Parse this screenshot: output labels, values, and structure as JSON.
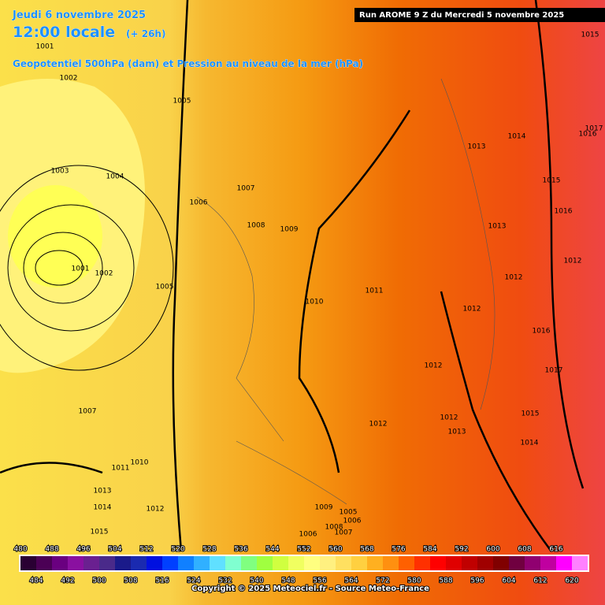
{
  "header": {
    "date": "Jeudi 6 novembre 2025",
    "time": "12:00 locale",
    "lead": "(+ 26h)",
    "field": "Geopotentiel 500hPa (dam) et Pression au niveau de la mer (hPa)",
    "run": "Run AROME 9 Z du Mercredi 5 novembre 2025"
  },
  "isobars": [
    "1001",
    "1002",
    "1005",
    "1003",
    "1004",
    "1006",
    "1007",
    "1008",
    "1009",
    "1001",
    "1002",
    "1005",
    "1010",
    "1011",
    "1013",
    "1014",
    "1015",
    "1016",
    "1013",
    "1012",
    "1012",
    "1012",
    "1016",
    "1017",
    "1012",
    "1007",
    "1012",
    "1012",
    "1013",
    "1015",
    "1014",
    "1010",
    "1011",
    "1013",
    "1014",
    "1012",
    "1015",
    "1009",
    "1005",
    "1006",
    "1008",
    "1007",
    "1006",
    "1015",
    "1017",
    "1016"
  ],
  "legend": {
    "labels": [
      480,
      484,
      488,
      492,
      496,
      500,
      504,
      508,
      512,
      516,
      520,
      524,
      528,
      532,
      536,
      540,
      544,
      548,
      552,
      556,
      560,
      564,
      568,
      572,
      576,
      580,
      584,
      588,
      592,
      596,
      600,
      604,
      608,
      612,
      616,
      620
    ],
    "colors": [
      "#2a0033",
      "#4b0055",
      "#6a0080",
      "#8a10a0",
      "#6a2090",
      "#4a2a8a",
      "#1a1a8a",
      "#1a2ab0",
      "#0010e0",
      "#0040ff",
      "#1080ff",
      "#30b0ff",
      "#60e0ff",
      "#80ffd0",
      "#80ff80",
      "#a0ff40",
      "#d0ff40",
      "#f0ff60",
      "#ffff80",
      "#fff080",
      "#ffe060",
      "#ffd040",
      "#ffb020",
      "#ff9010",
      "#ff6000",
      "#ff3000",
      "#ff0000",
      "#e00000",
      "#c00000",
      "#a00000",
      "#800000",
      "#700040",
      "#900070",
      "#c000a0",
      "#ff00ff",
      "#ff80ff"
    ]
  },
  "footer": {
    "copyright": "Copyright © 2025 Meteociel.fr - Source Meteo-France"
  }
}
